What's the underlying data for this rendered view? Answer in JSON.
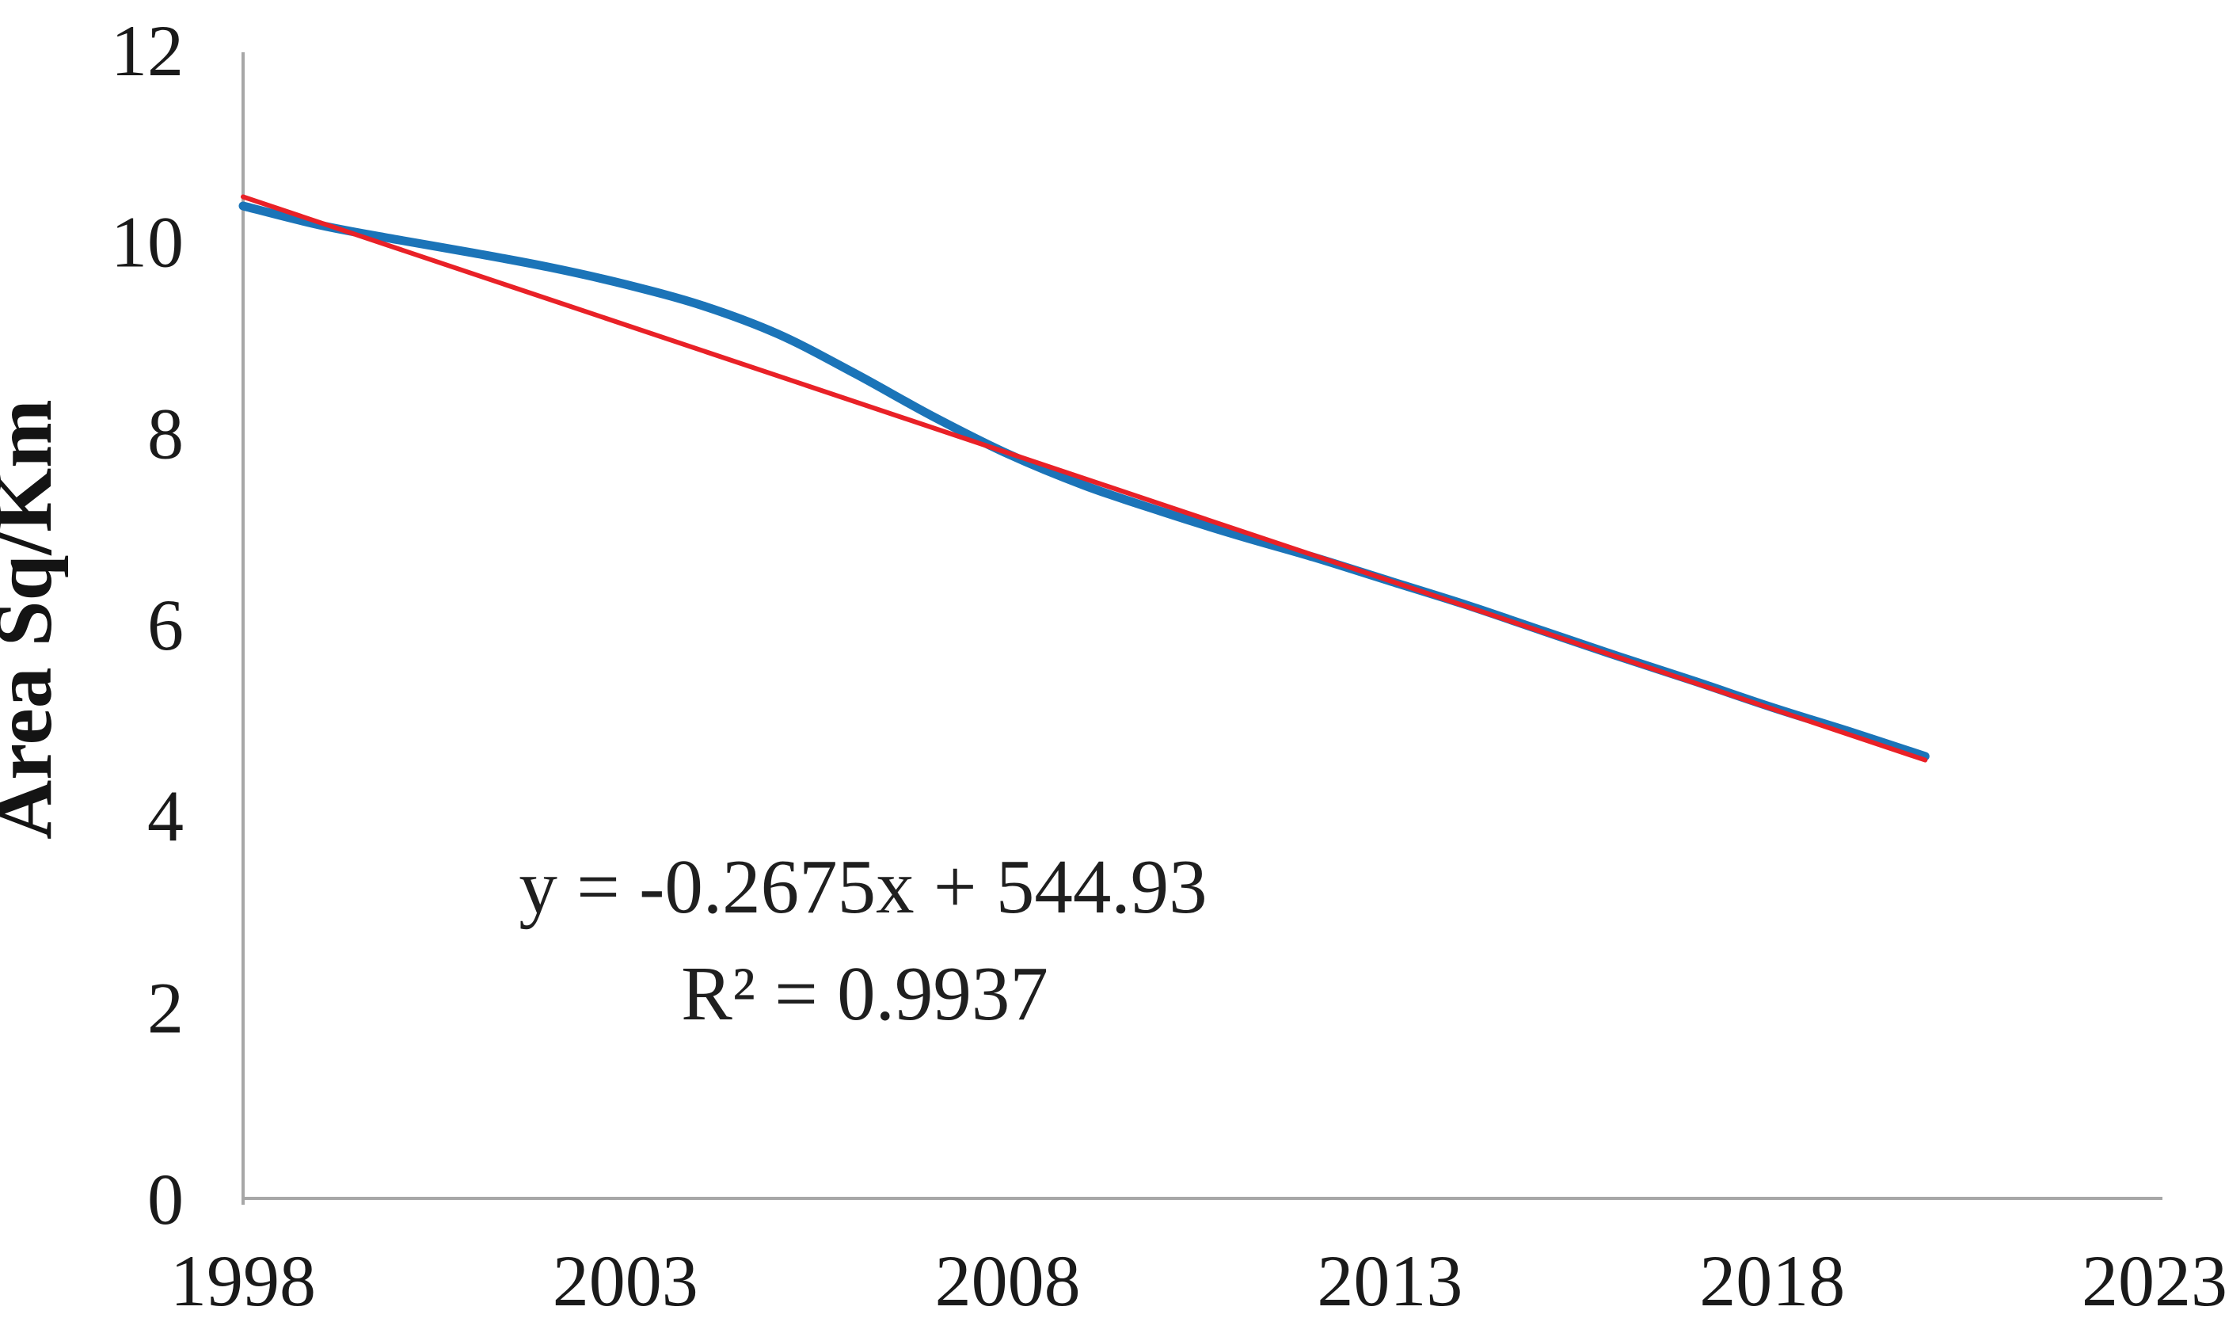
{
  "chart_data": {
    "type": "line",
    "title": "",
    "xlabel": "",
    "ylabel": "Area Sq/Km",
    "xlim": [
      1998,
      2023
    ],
    "ylim": [
      0,
      12
    ],
    "x_ticks": [
      "1998",
      "2003",
      "2008",
      "2013",
      "2018",
      "2023"
    ],
    "x_tick_values": [
      1998,
      2003,
      2008,
      2013,
      2018,
      2023
    ],
    "y_ticks": [
      "0",
      "2",
      "4",
      "6",
      "8",
      "10",
      "12"
    ],
    "y_tick_values": [
      0,
      2,
      4,
      6,
      8,
      10,
      12
    ],
    "grid": false,
    "legend": "none",
    "series": [
      {
        "name": "Area Sq/Km",
        "color": "#1b74b8",
        "smooth": true,
        "x": [
          1998,
          1999,
          2000,
          2001,
          2002,
          2003,
          2004,
          2005,
          2006,
          2007,
          2008,
          2009,
          2010,
          2011,
          2012,
          2013,
          2014,
          2015,
          2016,
          2017,
          2018,
          2019,
          2020
        ],
        "values": [
          10.37,
          10.17,
          10.02,
          9.88,
          9.73,
          9.55,
          9.33,
          9.03,
          8.62,
          8.18,
          7.78,
          7.45,
          7.18,
          6.93,
          6.7,
          6.45,
          6.2,
          5.93,
          5.66,
          5.4,
          5.13,
          4.88,
          4.62
        ]
      }
    ],
    "trendline": {
      "color": "#e92127",
      "slope": -0.2675,
      "intercept": 544.93,
      "x_range": [
        1998,
        2020
      ],
      "equation_label": "y = -0.2675x + 544.93",
      "r_squared_label": "R² = 0.9937"
    },
    "axis_color": "#a7a7a7",
    "text_color": "#1a1a1a"
  }
}
